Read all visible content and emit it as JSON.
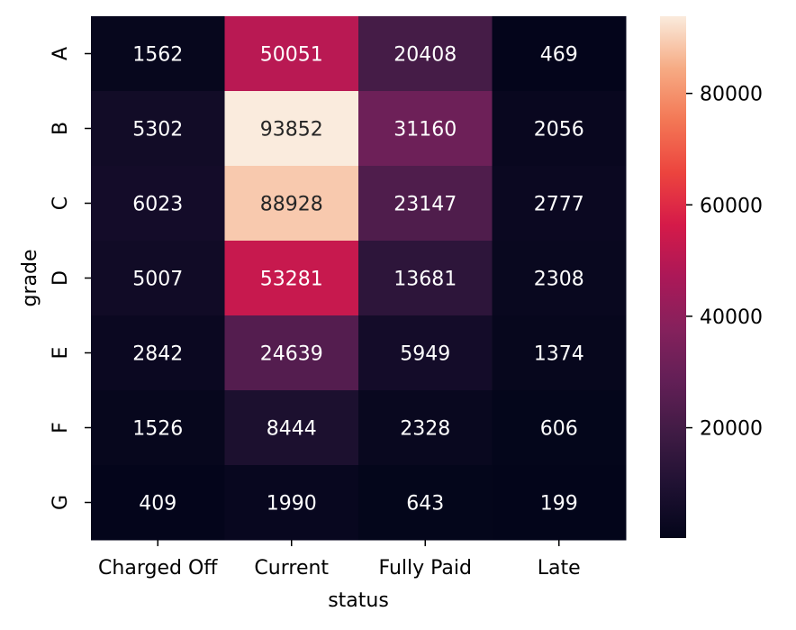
{
  "chart_data": {
    "type": "heatmap",
    "title": "",
    "xlabel": "status",
    "ylabel": "grade",
    "x_categories": [
      "Charged Off",
      "Current",
      "Fully Paid",
      "Late"
    ],
    "y_categories": [
      "A",
      "B",
      "C",
      "D",
      "E",
      "F",
      "G"
    ],
    "values": [
      [
        1562,
        50051,
        20408,
        469
      ],
      [
        5302,
        93852,
        31160,
        2056
      ],
      [
        6023,
        88928,
        23147,
        2777
      ],
      [
        5007,
        53281,
        13681,
        2308
      ],
      [
        2842,
        24639,
        5949,
        1374
      ],
      [
        1526,
        8444,
        2328,
        606
      ],
      [
        409,
        1990,
        643,
        199
      ]
    ],
    "colorbar": {
      "colormap": "rocket",
      "vmin": 199,
      "vmax": 93852,
      "ticks": [
        20000,
        40000,
        60000,
        80000
      ]
    },
    "grid": false
  }
}
